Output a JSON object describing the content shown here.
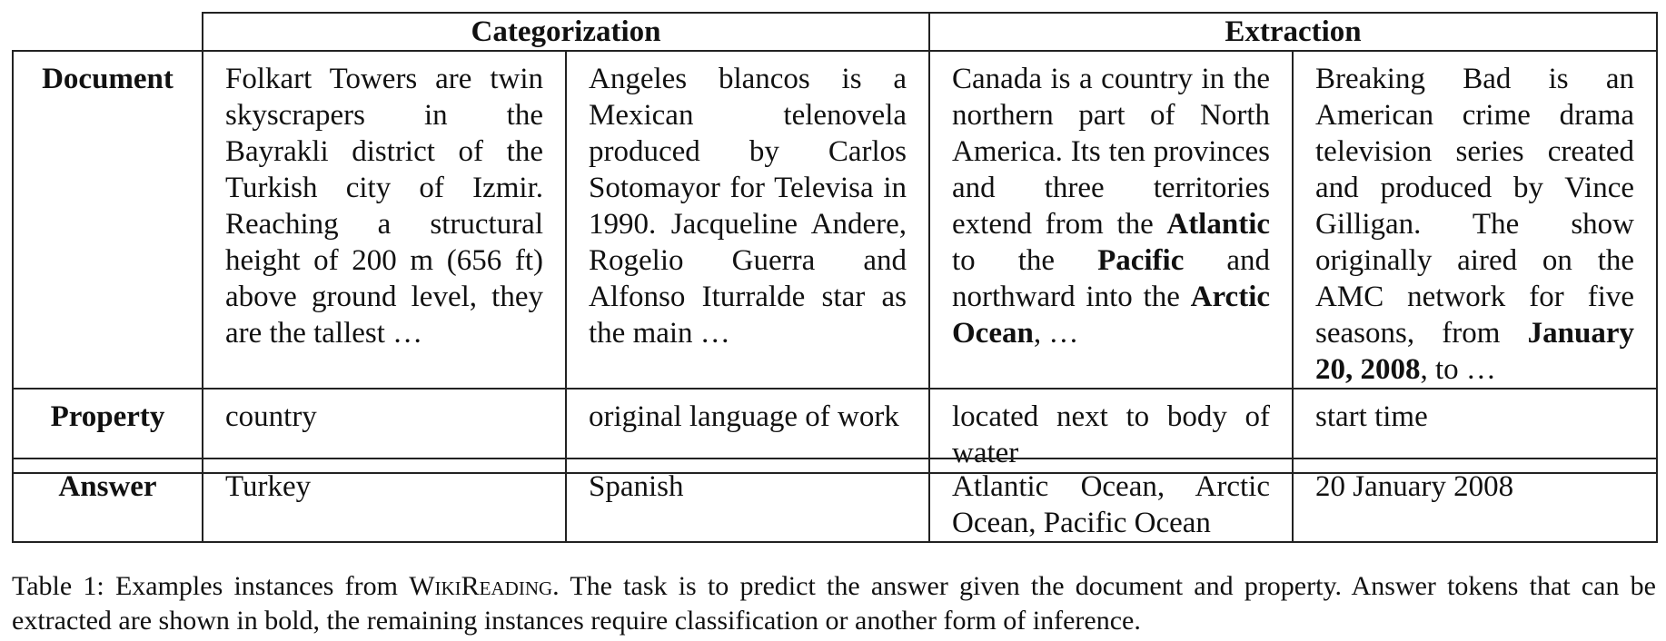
{
  "headers": {
    "categorization": "Categorization",
    "extraction": "Extraction"
  },
  "row_labels": {
    "document": "Document",
    "property": "Property",
    "answer": "Answer"
  },
  "documents": [
    [
      {
        "t": "Folkart Towers are twin skyscrapers in the Bayrakli district of the Turkish city of Izmir. Reaching a structural height of 200 m (656 ft) above ground level, they are the tallest …",
        "b": false
      }
    ],
    [
      {
        "t": "Angeles blancos is a Mexican telenovela produced by Carlos Sotomayor for Televisa in 1990. Jacqueline Andere, Rogelio Guerra and Alfonso Iturralde star as the main …",
        "b": false
      }
    ],
    [
      {
        "t": "Canada is a country in the northern part of North America. Its ten provinces and three territories extend from the ",
        "b": false
      },
      {
        "t": "Atlantic",
        "b": true
      },
      {
        "t": " to the ",
        "b": false
      },
      {
        "t": "Pacific",
        "b": true
      },
      {
        "t": " and northward into the ",
        "b": false
      },
      {
        "t": "Arctic Ocean",
        "b": true
      },
      {
        "t": ", …",
        "b": false
      }
    ],
    [
      {
        "t": "Breaking Bad is an American crime drama television series created and produced by Vince Gilligan. The show originally aired on the AMC network for five seasons, from ",
        "b": false
      },
      {
        "t": "January 20, 2008",
        "b": true
      },
      {
        "t": ", to …",
        "b": false
      }
    ]
  ],
  "properties": [
    "country",
    "original language of work",
    "located next to body of water",
    "start time"
  ],
  "answers": [
    "Turkey",
    "Spanish",
    "Atlantic Ocean, Arctic Ocean, Pacific Ocean",
    "20 January 2008"
  ],
  "caption": {
    "prefix": "Table 1: Examples instances from ",
    "dataset": "WikiReading",
    "suffix": ". The task is to predict the answer given the document and property. Answer tokens that can be extracted are shown in bold, the remaining instances require classification or another form of inference."
  }
}
